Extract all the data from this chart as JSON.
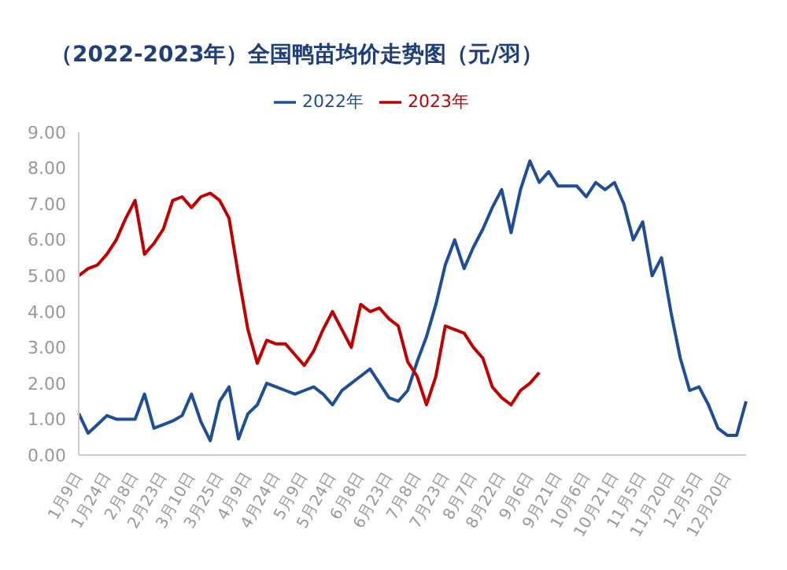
{
  "chart_data": {
    "type": "line",
    "title": "（2022-2023年）全国鸭苗均价走势图（元/羽）",
    "categories": [
      "1月9日",
      null,
      null,
      "1月24日",
      null,
      null,
      "2月8日",
      null,
      null,
      "2月23日",
      null,
      null,
      "3月10日",
      null,
      null,
      "3月25日",
      null,
      null,
      "4月9日",
      null,
      null,
      "4月24日",
      null,
      null,
      "5月9日",
      null,
      null,
      "5月24日",
      null,
      null,
      "6月8日",
      null,
      null,
      "6月23日",
      null,
      null,
      "7月8日",
      null,
      null,
      "7月23日",
      null,
      null,
      "8月7日",
      null,
      null,
      "8月22日",
      null,
      null,
      "9月6日",
      null,
      null,
      "9月21日",
      null,
      null,
      "10月6日",
      null,
      null,
      "10月21日",
      null,
      null,
      "11月5日",
      null,
      null,
      "11月20日",
      null,
      null,
      "12月5日",
      null,
      null,
      "12月20日",
      null,
      null
    ],
    "series": [
      {
        "name": "2022年",
        "color": "#1f4e96",
        "values": [
          1.16,
          0.61,
          0.85,
          1.1,
          1.0,
          1.0,
          1.0,
          1.7,
          0.75,
          0.85,
          0.95,
          1.1,
          1.7,
          0.93,
          0.4,
          1.5,
          1.9,
          0.45,
          1.15,
          1.4,
          2.0,
          1.9,
          1.8,
          1.7,
          1.8,
          1.9,
          1.7,
          1.4,
          1.8,
          2.0,
          2.2,
          2.4,
          2.0,
          1.6,
          1.5,
          1.8,
          2.6,
          3.3,
          4.2,
          5.3,
          6.0,
          5.2,
          5.8,
          6.3,
          6.9,
          7.4,
          6.2,
          7.4,
          8.2,
          7.6,
          7.9,
          7.5,
          7.5,
          7.5,
          7.2,
          7.6,
          7.4,
          7.6,
          7.0,
          6.0,
          6.5,
          5.0,
          5.5,
          4.0,
          2.7,
          1.8,
          1.9,
          1.4,
          0.75,
          0.55,
          0.55,
          1.5
        ]
      },
      {
        "name": "2023年",
        "color": "#c00000",
        "values": [
          5.0,
          5.2,
          5.3,
          5.6,
          6.0,
          6.6,
          7.1,
          5.6,
          5.9,
          6.3,
          7.1,
          7.2,
          6.9,
          7.2,
          7.3,
          7.1,
          6.6,
          5.0,
          3.5,
          2.56,
          3.2,
          3.1,
          3.1,
          2.8,
          2.5,
          2.9,
          3.5,
          4.0,
          3.5,
          3.0,
          4.2,
          4.0,
          4.1,
          3.8,
          3.6,
          2.6,
          2.2,
          1.4,
          2.2,
          3.6,
          3.5,
          3.4,
          3.0,
          2.7,
          1.9,
          1.6,
          1.4,
          1.8,
          2.0,
          2.3,
          null,
          null,
          null,
          null,
          null,
          null,
          null,
          null,
          null,
          null,
          null,
          null,
          null,
          null,
          null,
          null,
          null,
          null,
          null,
          null,
          null,
          null
        ]
      }
    ],
    "ylim": [
      0,
      9
    ],
    "yticks": [
      {
        "value": 0,
        "label": "0.00"
      },
      {
        "value": 1,
        "label": "1.00"
      },
      {
        "value": 2,
        "label": "2.00"
      },
      {
        "value": 3,
        "label": "3.00"
      },
      {
        "value": 4,
        "label": "4.00"
      },
      {
        "value": 5,
        "label": "5.00"
      },
      {
        "value": 6,
        "label": "6.00"
      },
      {
        "value": 7,
        "label": "7.00"
      },
      {
        "value": 8,
        "label": "8.00"
      },
      {
        "value": 9,
        "label": "9.00"
      }
    ],
    "grid": false,
    "legend": "top",
    "marker": "none",
    "line_style": "solid"
  }
}
